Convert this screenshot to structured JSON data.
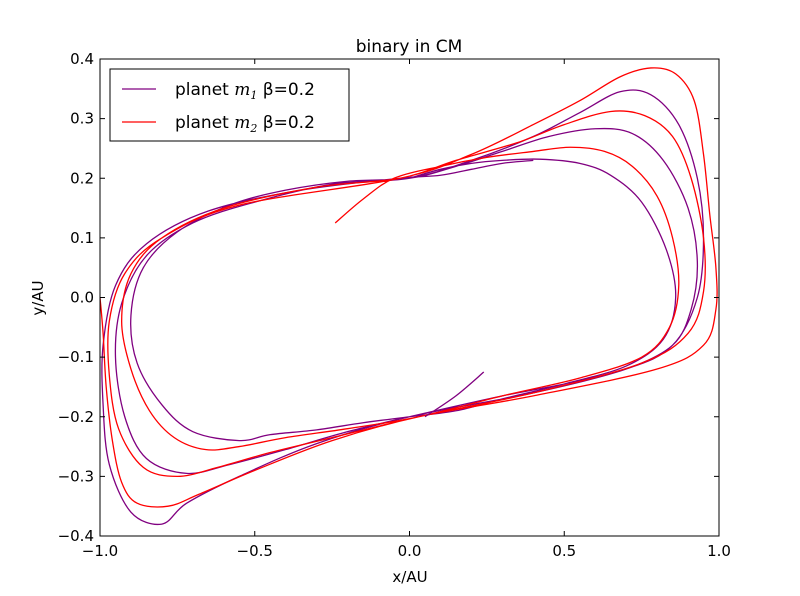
{
  "chart_data": {
    "type": "line",
    "title": "binary in CM",
    "xlabel": "x/AU",
    "ylabel": "y/AU",
    "xlim": [
      -1.0,
      1.0
    ],
    "ylim": [
      -0.4,
      0.4
    ],
    "xticks": [
      -1.0,
      -0.5,
      0.0,
      0.5,
      1.0
    ],
    "xtick_labels": [
      "−1.0",
      "−0.5",
      "0.0",
      "0.5",
      "1.0"
    ],
    "yticks": [
      -0.4,
      -0.3,
      -0.2,
      -0.1,
      0.0,
      0.1,
      0.2,
      0.3,
      0.4
    ],
    "ytick_labels": [
      "−0.4",
      "−0.3",
      "−0.2",
      "−0.1",
      "0.0",
      "0.1",
      "0.2",
      "0.3",
      "0.4"
    ],
    "grid": false,
    "legend_position": "top-left",
    "series": [
      {
        "name": "planet m1  β=0.2",
        "legend_prefix": "planet ",
        "legend_math_base": "m",
        "legend_math_sub": "1",
        "legend_suffix": "  β=0.2",
        "color": "#800080",
        "shape": "precessing loops of the orbit; upper loop peaks near (0.4, 0.23), (0.55, 0.28), (0.7, 0.35) to the right, lower loop dips near (-0.55, -0.25), (-0.7, -0.31), (-0.78, -0.38) to the left; all loops pass through (-0.03, 0.2) and (0.03, -0.2)",
        "points": [
          [
            0.0,
            0.2
          ],
          [
            0.1,
            0.215
          ],
          [
            0.2,
            0.225
          ],
          [
            0.3,
            0.23
          ],
          [
            0.42,
            0.232
          ],
          [
            0.55,
            0.225
          ],
          [
            0.65,
            0.205
          ],
          [
            0.75,
            0.16
          ],
          [
            0.83,
            0.08
          ],
          [
            0.86,
            0.0
          ],
          [
            0.82,
            -0.07
          ],
          [
            0.7,
            -0.115
          ],
          [
            0.5,
            -0.145
          ],
          [
            0.3,
            -0.17
          ],
          [
            0.15,
            -0.19
          ],
          [
            0.0,
            -0.2
          ],
          [
            -0.15,
            -0.21
          ],
          [
            -0.3,
            -0.222
          ],
          [
            -0.45,
            -0.23
          ],
          [
            -0.55,
            -0.24
          ],
          [
            -0.7,
            -0.225
          ],
          [
            -0.8,
            -0.18
          ],
          [
            -0.88,
            -0.11
          ],
          [
            -0.9,
            -0.03
          ],
          [
            -0.86,
            0.05
          ],
          [
            -0.75,
            0.11
          ],
          [
            -0.58,
            0.155
          ],
          [
            -0.4,
            0.18
          ],
          [
            -0.2,
            0.195
          ],
          [
            0.0,
            0.2
          ],
          [
            0.15,
            0.22
          ],
          [
            0.3,
            0.245
          ],
          [
            0.45,
            0.27
          ],
          [
            0.6,
            0.283
          ],
          [
            0.72,
            0.275
          ],
          [
            0.82,
            0.23
          ],
          [
            0.9,
            0.15
          ],
          [
            0.93,
            0.06
          ],
          [
            0.91,
            -0.02
          ],
          [
            0.85,
            -0.08
          ],
          [
            0.7,
            -0.12
          ],
          [
            0.5,
            -0.145
          ],
          [
            0.3,
            -0.165
          ],
          [
            0.0,
            -0.2
          ],
          [
            -0.2,
            -0.225
          ],
          [
            -0.4,
            -0.255
          ],
          [
            -0.58,
            -0.28
          ],
          [
            -0.72,
            -0.295
          ],
          [
            -0.85,
            -0.27
          ],
          [
            -0.92,
            -0.2
          ],
          [
            -0.95,
            -0.1
          ],
          [
            -0.93,
            -0.01
          ],
          [
            -0.85,
            0.07
          ],
          [
            -0.7,
            0.125
          ],
          [
            -0.5,
            0.16
          ],
          [
            -0.25,
            0.19
          ],
          [
            0.0,
            0.2
          ],
          [
            0.2,
            0.23
          ],
          [
            0.4,
            0.27
          ],
          [
            0.55,
            0.31
          ],
          [
            0.68,
            0.345
          ],
          [
            0.78,
            0.34
          ],
          [
            0.87,
            0.29
          ],
          [
            0.93,
            0.2
          ],
          [
            0.95,
            0.1
          ],
          [
            0.93,
            0.0
          ],
          [
            0.85,
            -0.08
          ],
          [
            0.7,
            -0.12
          ],
          [
            0.4,
            -0.16
          ],
          [
            0.0,
            -0.2
          ],
          [
            -0.3,
            -0.245
          ],
          [
            -0.55,
            -0.3
          ],
          [
            -0.72,
            -0.345
          ],
          [
            -0.8,
            -0.38
          ],
          [
            -0.9,
            -0.36
          ],
          [
            -0.97,
            -0.28
          ],
          [
            -0.99,
            -0.18
          ],
          [
            -0.99,
            -0.08
          ],
          [
            -0.95,
            0.02
          ],
          [
            -0.85,
            0.09
          ],
          [
            -0.65,
            0.145
          ],
          [
            -0.35,
            0.18
          ],
          [
            -0.03,
            0.2
          ],
          [
            0.1,
            0.205
          ],
          [
            0.2,
            0.215
          ],
          [
            0.3,
            0.225
          ],
          [
            0.4,
            0.23
          ]
        ]
      },
      {
        "name": "planet m2  β=0.2",
        "legend_prefix": "planet ",
        "legend_math_base": "m",
        "legend_math_sub": "2",
        "legend_suffix": "  β=0.2",
        "color": "#ff0000",
        "shape": "precessing loops mirrored through the origin relative to planet m1; upper loop peaks near (0.5, 0.25), (0.65, 0.31), (0.78, 0.385), lower loop dips near (-0.65, -0.28), (-0.78, -0.35); all loops pass through (-0.03, 0.2) and (0.03, -0.2)",
        "points": [
          [
            -0.24,
            0.125
          ],
          [
            -0.15,
            0.165
          ],
          [
            -0.05,
            0.2
          ],
          [
            0.1,
            0.22
          ],
          [
            0.25,
            0.235
          ],
          [
            0.4,
            0.245
          ],
          [
            0.52,
            0.252
          ],
          [
            0.63,
            0.245
          ],
          [
            0.72,
            0.22
          ],
          [
            0.8,
            0.17
          ],
          [
            0.85,
            0.1
          ],
          [
            0.87,
            0.02
          ],
          [
            0.84,
            -0.05
          ],
          [
            0.75,
            -0.1
          ],
          [
            0.55,
            -0.135
          ],
          [
            0.3,
            -0.165
          ],
          [
            0.03,
            -0.2
          ],
          [
            -0.2,
            -0.22
          ],
          [
            -0.4,
            -0.235
          ],
          [
            -0.55,
            -0.25
          ],
          [
            -0.66,
            -0.255
          ],
          [
            -0.76,
            -0.235
          ],
          [
            -0.84,
            -0.19
          ],
          [
            -0.9,
            -0.12
          ],
          [
            -0.93,
            -0.04
          ],
          [
            -0.9,
            0.04
          ],
          [
            -0.8,
            0.1
          ],
          [
            -0.6,
            0.15
          ],
          [
            -0.3,
            0.185
          ],
          [
            -0.03,
            0.2
          ],
          [
            0.15,
            0.23
          ],
          [
            0.35,
            0.26
          ],
          [
            0.5,
            0.29
          ],
          [
            0.65,
            0.312
          ],
          [
            0.76,
            0.305
          ],
          [
            0.85,
            0.27
          ],
          [
            0.91,
            0.2
          ],
          [
            0.95,
            0.1
          ],
          [
            0.95,
            0.01
          ],
          [
            0.9,
            -0.06
          ],
          [
            0.75,
            -0.11
          ],
          [
            0.4,
            -0.16
          ],
          [
            0.03,
            -0.2
          ],
          [
            -0.25,
            -0.235
          ],
          [
            -0.45,
            -0.26
          ],
          [
            -0.62,
            -0.285
          ],
          [
            -0.75,
            -0.3
          ],
          [
            -0.86,
            -0.285
          ],
          [
            -0.94,
            -0.22
          ],
          [
            -0.97,
            -0.13
          ],
          [
            -0.97,
            -0.04
          ],
          [
            -0.92,
            0.04
          ],
          [
            -0.8,
            0.1
          ],
          [
            -0.55,
            0.155
          ],
          [
            -0.03,
            0.2
          ],
          [
            0.2,
            0.24
          ],
          [
            0.4,
            0.29
          ],
          [
            0.55,
            0.33
          ],
          [
            0.68,
            0.37
          ],
          [
            0.78,
            0.385
          ],
          [
            0.86,
            0.375
          ],
          [
            0.92,
            0.33
          ],
          [
            0.95,
            0.24
          ],
          [
            0.97,
            0.14
          ],
          [
            0.99,
            0.05
          ],
          [
            0.99,
            -0.02
          ],
          [
            0.95,
            -0.08
          ],
          [
            0.8,
            -0.12
          ],
          [
            0.4,
            -0.165
          ],
          [
            0.03,
            -0.2
          ],
          [
            -0.25,
            -0.24
          ],
          [
            -0.5,
            -0.29
          ],
          [
            -0.68,
            -0.33
          ],
          [
            -0.78,
            -0.35
          ],
          [
            -0.88,
            -0.345
          ],
          [
            -0.93,
            -0.31
          ],
          [
            -0.96,
            -0.24
          ],
          [
            -0.98,
            -0.15
          ],
          [
            -0.99,
            -0.06
          ],
          [
            -1.0,
            0.0
          ]
        ]
      }
    ],
    "extra_segments": [
      {
        "color": "#800080",
        "points": [
          [
            0.24,
            -0.125
          ],
          [
            0.15,
            -0.165
          ],
          [
            0.05,
            -0.2
          ]
        ]
      }
    ]
  }
}
